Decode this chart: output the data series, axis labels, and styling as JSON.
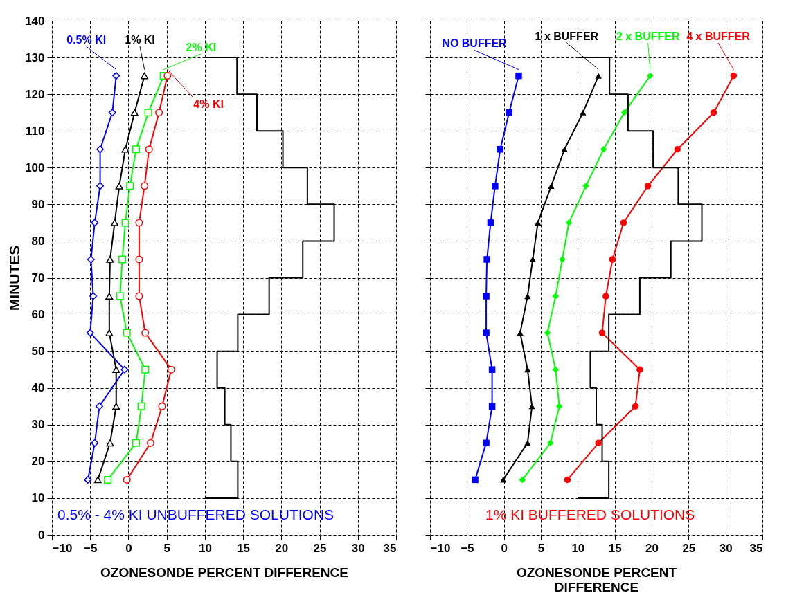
{
  "chart_data": [
    {
      "type": "line",
      "xlabel": "OZONESONDE PERCENT DIFFERENCE",
      "ylabel": "MINUTES",
      "xlim": [
        -10,
        35
      ],
      "xticks": [
        -10,
        -5,
        0,
        5,
        10,
        15,
        20,
        25,
        30,
        35
      ],
      "ylim": [
        0,
        140
      ],
      "yticks": [
        0,
        10,
        20,
        30,
        40,
        50,
        60,
        70,
        80,
        90,
        100,
        110,
        120,
        130,
        140
      ],
      "grid": true,
      "annotations": [
        "0.5% - 4% KI  UNBUFFERED SOLUTIONS"
      ],
      "series": [
        {
          "name": "0.5% KI",
          "color": "#0000ff",
          "marker": "diamond",
          "x": [
            -1.6,
            -2.1,
            -3.7,
            -3.7,
            -4.4,
            -4.9,
            -4.6,
            -5.0,
            -0.5,
            -3.8,
            -4.4,
            -5.3
          ],
          "values": [
            125,
            115,
            105,
            95,
            85,
            75,
            65,
            55,
            45,
            35,
            25,
            15
          ]
        },
        {
          "name": "1% KI",
          "color": "#000000",
          "marker": "triangle",
          "x": [
            2.1,
            0.8,
            -0.4,
            -1.2,
            -1.8,
            -2.4,
            -2.5,
            -2.5,
            -1.6,
            -1.6,
            -2.4,
            -4.0
          ],
          "values": [
            125,
            115,
            105,
            95,
            85,
            75,
            65,
            55,
            45,
            35,
            25,
            15
          ]
        },
        {
          "name": "2% KI",
          "color": "#00ff00",
          "marker": "square",
          "x": [
            4.6,
            2.6,
            1.0,
            0.2,
            -0.4,
            -0.8,
            -1.1,
            -0.2,
            2.2,
            1.7,
            1.0,
            -2.7
          ],
          "values": [
            125,
            115,
            105,
            95,
            85,
            75,
            65,
            55,
            45,
            35,
            25,
            15
          ]
        },
        {
          "name": "4% KI",
          "color": "#ff0000",
          "marker": "circle",
          "x": [
            5.1,
            4.0,
            2.7,
            2.1,
            1.4,
            1.4,
            1.4,
            2.2,
            5.6,
            4.4,
            2.9,
            -0.2
          ],
          "values": [
            125,
            115,
            105,
            95,
            85,
            75,
            65,
            55,
            45,
            35,
            25,
            15
          ]
        },
        {
          "color": "#000000",
          "marker": "none",
          "x": [
            10,
            14.2,
            14.2,
            16.8,
            16.8,
            20.2,
            20.2,
            23.4,
            23.4,
            26.9,
            26.9,
            22.8,
            22.8,
            18.4,
            18.4,
            14.3,
            14.3,
            11.6,
            11.6,
            12.6,
            12.6,
            13.4,
            13.4,
            14.3,
            14.3,
            10
          ],
          "values": [
            130,
            130,
            120,
            120,
            110,
            110,
            100,
            100,
            90,
            90,
            80,
            80,
            70,
            70,
            60,
            60,
            50,
            50,
            40,
            40,
            30,
            30,
            20,
            20,
            10,
            10
          ]
        }
      ]
    },
    {
      "type": "line",
      "xlabel": "OZONESONDE PERCENT\nDIFFERENCE",
      "xlim": [
        -10,
        35
      ],
      "xticks": [
        -10,
        -5,
        0,
        5,
        10,
        15,
        20,
        25,
        30,
        35
      ],
      "ylim": [
        0,
        140
      ],
      "yticks": [
        0,
        10,
        20,
        30,
        40,
        50,
        60,
        70,
        80,
        90,
        100,
        110,
        120,
        130,
        140
      ],
      "grid": true,
      "tick_labels": "x",
      "annotations": [
        "1% KI  BUFFERED SOLUTIONS"
      ],
      "series": [
        {
          "name": "NO BUFFER",
          "color": "#0000ff",
          "marker": "square",
          "x": [
            2.0,
            0.7,
            -0.5,
            -1.2,
            -1.8,
            -2.3,
            -2.4,
            -2.4,
            -1.6,
            -1.6,
            -2.4,
            -3.9
          ],
          "values": [
            125,
            115,
            105,
            95,
            85,
            75,
            65,
            55,
            45,
            35,
            25,
            15
          ]
        },
        {
          "name": "1 x BUFFER",
          "color": "#000000",
          "marker": "triangle",
          "x": [
            12.8,
            10.7,
            8.2,
            6.4,
            4.6,
            3.9,
            3.2,
            2.2,
            3.2,
            3.8,
            3.2,
            -0.1
          ],
          "values": [
            125,
            115,
            105,
            95,
            85,
            75,
            65,
            55,
            45,
            35,
            25,
            15
          ]
        },
        {
          "name": "2 x BUFFER",
          "color": "#00ff00",
          "marker": "diamond",
          "x": [
            19.8,
            16.3,
            13.5,
            11.1,
            8.8,
            7.9,
            7.0,
            5.9,
            7.0,
            7.5,
            6.3,
            2.5
          ],
          "values": [
            125,
            115,
            105,
            95,
            85,
            75,
            65,
            55,
            45,
            35,
            25,
            15
          ]
        },
        {
          "name": "4 x BUFFER",
          "color": "#ff0000",
          "marker": "circle",
          "x": [
            31.1,
            28.4,
            23.5,
            19.5,
            16.2,
            14.7,
            13.8,
            13.3,
            18.4,
            17.8,
            12.8,
            8.6
          ],
          "values": [
            125,
            115,
            105,
            95,
            85,
            75,
            65,
            55,
            45,
            35,
            25,
            15
          ]
        },
        {
          "color": "#000000",
          "marker": "none",
          "x": [
            10,
            14.3,
            14.3,
            16.8,
            16.8,
            20.2,
            20.2,
            23.6,
            23.6,
            26.8,
            26.8,
            22.6,
            22.6,
            18.4,
            18.4,
            14.2,
            14.2,
            11.7,
            11.7,
            12.5,
            12.5,
            13.3,
            13.3,
            14.2,
            14.2,
            10
          ],
          "values": [
            130,
            130,
            120,
            120,
            110,
            110,
            100,
            100,
            90,
            90,
            80,
            80,
            70,
            70,
            60,
            60,
            50,
            50,
            40,
            40,
            30,
            30,
            20,
            20,
            10,
            10
          ]
        }
      ]
    }
  ]
}
